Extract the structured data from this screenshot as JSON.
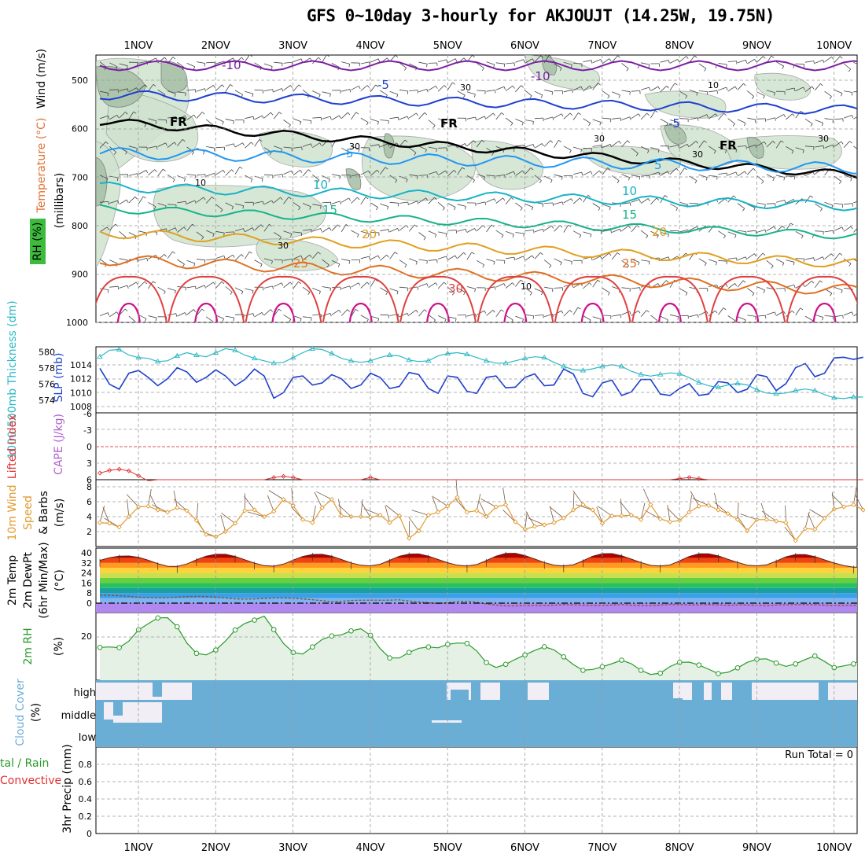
{
  "title": "GFS 0~10day 3-hourly for AKJOUJT (14.25W, 19.75N)",
  "days": [
    "1NOV",
    "2NOV",
    "3NOV",
    "4NOV",
    "5NOV",
    "6NOV",
    "7NOV",
    "8NOV",
    "9NOV",
    "10NOV"
  ],
  "colors": {
    "rh_fill": "#cfe3cf",
    "rh_line": "#999999",
    "slp": "#1f3fcc",
    "thick": "#2bb8c4",
    "lifted": "#e03030",
    "cape": "#b060d0",
    "wind": "#e09a30",
    "rh2m": "#2a9a2a",
    "cloud": "#6aaed6",
    "cloud_bg": "#f2eef6",
    "frz": "#000000"
  },
  "labels": {
    "upper_wind": "Wind (m/s)",
    "upper_temp": "Temperature (°C)",
    "upper_rh": "RH (%)",
    "upper_unit": "(millibars)",
    "thick": "1000-500mb Thickness (dm)",
    "slp": "SLP (mb)",
    "lifted": "Lifted Index",
    "cape": "CAPE (J/kg)",
    "wind10": "10m Wind",
    "wind10b": "Speed",
    "wind10c": "& Barbs",
    "wind10unit": "(m/s)",
    "temp2m": "2m Temp",
    "dew2m": "2m DewPt",
    "minmax": "(6hr Min/Max)",
    "temp_unit": "(°C)",
    "rh2m": "2m RH",
    "rh_unit": "(%)",
    "cloud": "Cloud Cover",
    "cloud_unit": "(%)",
    "cloud_high": "high",
    "cloud_mid": "middle",
    "cloud_low": "low",
    "precip1": "tal / Rain",
    "precip2": "Convective",
    "precip_axis": "3hr Precip (mm)",
    "run_total": "Run Total = 0",
    "fr": "FR"
  },
  "chart_data": [
    {
      "type": "line",
      "panel": "upper-air",
      "ylabel": "(millibars)",
      "y_ticks": [
        500,
        600,
        700,
        800,
        900,
        1000
      ],
      "ylim": [
        1000,
        450
      ],
      "isotherm_labels": [
        {
          "label": "-10",
          "level": 470
        },
        {
          "label": "-5",
          "level": 530
        },
        {
          "label": "FR",
          "level": 580
        },
        {
          "label": "5",
          "level": 650
        },
        {
          "label": "10",
          "level": 720
        },
        {
          "label": "15",
          "level": 765
        },
        {
          "label": "20",
          "level": 815
        },
        {
          "label": "25",
          "level": 870
        },
        {
          "label": "30",
          "level": 925
        }
      ],
      "rh_labels": [
        "10",
        "30",
        "30",
        "30",
        "30",
        "30",
        "10",
        "30",
        "10"
      ]
    },
    {
      "type": "line",
      "panel": "slp-thickness",
      "slp_ticks": [
        1008,
        1010,
        1012,
        1014
      ],
      "thick_ticks": [
        574,
        576,
        578,
        580
      ],
      "series": [
        {
          "name": "SLP (mb)",
          "values": [
            1013.5,
            1011.2,
            1010.5,
            1012.8,
            1013.2,
            1012.2,
            1011,
            1012,
            1013.6,
            1013,
            1011.5,
            1012.2,
            1013.3,
            1012.4,
            1011,
            1011.9,
            1013.4,
            1012.4,
            1009.2,
            1010,
            1012.2,
            1012.4,
            1011.1,
            1011.4,
            1012.6,
            1012,
            1010.6,
            1011.1,
            1012.8,
            1012.2,
            1010.6,
            1010.9,
            1012.9,
            1012.6,
            1010.6,
            1009.9,
            1012.4,
            1012.2,
            1010.2,
            1009.9,
            1012.2,
            1012.4,
            1010.7,
            1010.8,
            1012.2,
            1012.7,
            1011,
            1011.1,
            1013.4,
            1012.7,
            1009.9,
            1009.4,
            1011.4,
            1011.8,
            1009.6,
            1010.1,
            1011.9,
            1011.9,
            1009.8,
            1009.6,
            1010.6,
            1011.3,
            1009.6,
            1009.8,
            1011.6,
            1011.4,
            1010,
            1010.5,
            1012.6,
            1012.3,
            1010.3,
            1011.3,
            1013.6,
            1014.2,
            1012.3,
            1012.8,
            1015,
            1015.1,
            1014.8,
            1015.1
          ]
        },
        {
          "name": "1000-500mb Thickness (dm)",
          "values": [
            579.4,
            580.2,
            580.3,
            579.6,
            579.3,
            579.2,
            578.8,
            578.9,
            579.5,
            579.9,
            579.6,
            579.4,
            579.9,
            580.4,
            580.2,
            579.6,
            579.2,
            578.9,
            578.6,
            578.7,
            579.3,
            579.9,
            580.4,
            580.3,
            579.8,
            579.2,
            578.9,
            578.7,
            578.9,
            579.3,
            579.6,
            579.5,
            579,
            578.8,
            578.9,
            579.5,
            579.8,
            579.9,
            579.7,
            579.3,
            578.9,
            578.6,
            578.6,
            578.9,
            579.2,
            579.4,
            579.3,
            578.7,
            578.2,
            577.8,
            577.7,
            577.9,
            578.2,
            578.4,
            578.2,
            577.6,
            577.2,
            577,
            577.2,
            577.4,
            577.3,
            576.8,
            576.2,
            575.8,
            575.6,
            575.9,
            576.1,
            575.9,
            575.3,
            574.9,
            574.8,
            574.9,
            575.2,
            575.4,
            575.2,
            574.7,
            574.3,
            574.2,
            574.4,
            574.4
          ]
        }
      ]
    },
    {
      "type": "line",
      "panel": "lifted-cape",
      "y_ticks": [
        -6,
        -3,
        0,
        3,
        6
      ],
      "series": [
        {
          "name": "Lifted Index",
          "values": [
            4.8,
            4.3,
            4.1,
            4.4,
            5.3,
            6.2,
            6,
            6,
            6,
            6,
            6,
            6,
            6,
            6,
            6,
            6,
            6,
            6,
            5.6,
            5.4,
            5.6,
            6,
            6,
            6,
            6,
            6,
            6,
            6,
            5.6,
            6,
            6,
            6,
            6,
            6,
            6,
            6,
            6,
            6,
            6,
            6,
            6,
            6,
            6,
            6,
            6,
            6,
            6,
            6,
            6,
            6,
            6,
            6,
            6,
            6,
            6,
            6,
            6,
            6,
            6,
            6,
            5.8,
            5.6,
            5.8,
            6,
            6,
            6,
            6,
            6,
            6,
            6,
            6,
            6,
            6,
            6,
            6,
            6,
            6,
            6,
            6,
            6
          ]
        }
      ]
    },
    {
      "type": "line",
      "panel": "10m-wind",
      "ylabel": "(m/s)",
      "y_ticks": [
        2,
        4,
        6,
        8
      ],
      "series": [
        {
          "name": "10m Wind Speed",
          "values": [
            3.2,
            3.1,
            2.6,
            4,
            5.3,
            5.4,
            4.9,
            4.6,
            5.2,
            4.8,
            3.5,
            1.6,
            1.3,
            2,
            3.1,
            4.8,
            4.9,
            4,
            4.7,
            6.3,
            5.5,
            3.6,
            3.2,
            5.2,
            6.3,
            4.1,
            4,
            4,
            3.9,
            4.2,
            3.2,
            4.1,
            1.1,
            2.1,
            4.2,
            4.6,
            5.4,
            6.6,
            4.6,
            4.8,
            4,
            5.3,
            5.6,
            3.3,
            2.3,
            2.7,
            2.9,
            3.2,
            3.8,
            4.9,
            5.6,
            4.9,
            3.1,
            4.1,
            4.1,
            4.2,
            3.6,
            5.6,
            3.7,
            3.3,
            3.5,
            4.6,
            5.4,
            5.5,
            4.9,
            4.4,
            3.6,
            2.1,
            3.6,
            3.6,
            3.4,
            3.2,
            0.8,
            2.4,
            2.3,
            3.8,
            5,
            5.3,
            5.6,
            4.9
          ]
        }
      ]
    },
    {
      "type": "area",
      "panel": "2m-temperature",
      "ylabel": "(°C)",
      "y_ticks": [
        0,
        8,
        16,
        24,
        32,
        40
      ],
      "series": [
        {
          "name": "2m Temp",
          "values": [
            34,
            36.1,
            37.3,
            37.5,
            36.4,
            34.1,
            31.3,
            29.3,
            29.1,
            31.1,
            34.5,
            37.4,
            38.8,
            38.8,
            37.1,
            34.5,
            31.8,
            29.8,
            29.4,
            31,
            34.2,
            37.1,
            38.7,
            38.8,
            37.3,
            34.7,
            32,
            30.1,
            29.6,
            30.9,
            34.1,
            37.3,
            39,
            39.1,
            37.4,
            34.7,
            32.1,
            30.1,
            29.5,
            30.6,
            33.9,
            37.4,
            39.5,
            39.6,
            37.8,
            35.1,
            32.3,
            30.2,
            29.6,
            30.5,
            33.7,
            37.3,
            39.3,
            39.4,
            37.7,
            35,
            32.3,
            30,
            29.5,
            30.3,
            33.6,
            37.1,
            39.2,
            39.2,
            37.6,
            34.9,
            32.4,
            30.2,
            29.6,
            30.4,
            33.4,
            36.8,
            38.6,
            38.6,
            37,
            34.4,
            31.9,
            29.9,
            28.6,
            28.5
          ]
        },
        {
          "name": "2m DewPt",
          "values": [
            6.4,
            6.2,
            5.9,
            5.4,
            4.7,
            4.5,
            4.3,
            4.4,
            4.8,
            5.2,
            5.4,
            5.2,
            4.8,
            4.1,
            3.4,
            3.2,
            3.3,
            3.7,
            4.1,
            4.1,
            3.8,
            3.3,
            2.7,
            2,
            1.2,
            1.4,
            2.1,
            2.3,
            2.4,
            2.3,
            2.4,
            2.6,
            1.7,
            1,
            0.3,
            -0.3,
            0.3,
            1.2,
            1.5,
            0.6,
            -0.6,
            -1.5,
            -2.2,
            -2.2,
            -2,
            -1.8,
            -1.9,
            -1.6,
            -1.2,
            -1.4,
            -1.6,
            -1.8,
            -1.9,
            -1.5,
            -1.2,
            -1.6,
            -1.9,
            -2,
            -1.5,
            -1.1,
            -1.2,
            -1.5,
            -1.3,
            -1.1,
            -1.4,
            -1.7,
            -1.4,
            -1.5,
            -1.9,
            -1.9,
            -1.5,
            -1.3,
            -1.2,
            -1.1,
            -1.3,
            -1.6,
            -1.9,
            -1.8,
            -1.7,
            -1.8
          ]
        }
      ]
    },
    {
      "type": "line",
      "panel": "2m-rh",
      "ylabel": "(%)",
      "y_ticks": [
        20
      ],
      "series": [
        {
          "name": "2m RH",
          "values": [
            14.9,
            15.1,
            14.8,
            17.8,
            22.9,
            25.6,
            28.3,
            28.4,
            24.3,
            16.9,
            12.2,
            11.5,
            13.7,
            17.8,
            22.8,
            25.8,
            27.3,
            29.1,
            23,
            16.7,
            12.6,
            11.9,
            15.1,
            18.5,
            20.1,
            20.6,
            22.4,
            23.4,
            20.4,
            14.4,
            10.1,
            10.1,
            12.6,
            14.5,
            15.1,
            14.7,
            16.3,
            16.9,
            16.7,
            13.3,
            8,
            5.8,
            7.2,
            9.5,
            11.5,
            13.5,
            15.2,
            13.8,
            10.6,
            7.1,
            4.5,
            4.9,
            6.1,
            7.5,
            9.1,
            7.5,
            4.5,
            2.6,
            3.2,
            6.2,
            8.1,
            8.2,
            6.9,
            5,
            3,
            3.6,
            5.6,
            8.1,
            9.5,
            9.7,
            7.8,
            6.3,
            7.4,
            9.4,
            11,
            8.5,
            5.7,
            6.5,
            7.4,
            9.8
          ]
        }
      ]
    },
    {
      "type": "bar",
      "panel": "cloud-cover",
      "categories": [
        "high",
        "middle",
        "low"
      ],
      "note": "low and middle cloud ~100% throughout; high cloud variable"
    },
    {
      "type": "bar",
      "panel": "3hr-precip",
      "ylabel": "3hr Precip (mm)",
      "y_ticks": [
        0,
        0.2,
        0.4,
        0.6,
        0.8
      ],
      "ylim": [
        0,
        0.9
      ],
      "values": [],
      "run_total": 0
    }
  ]
}
